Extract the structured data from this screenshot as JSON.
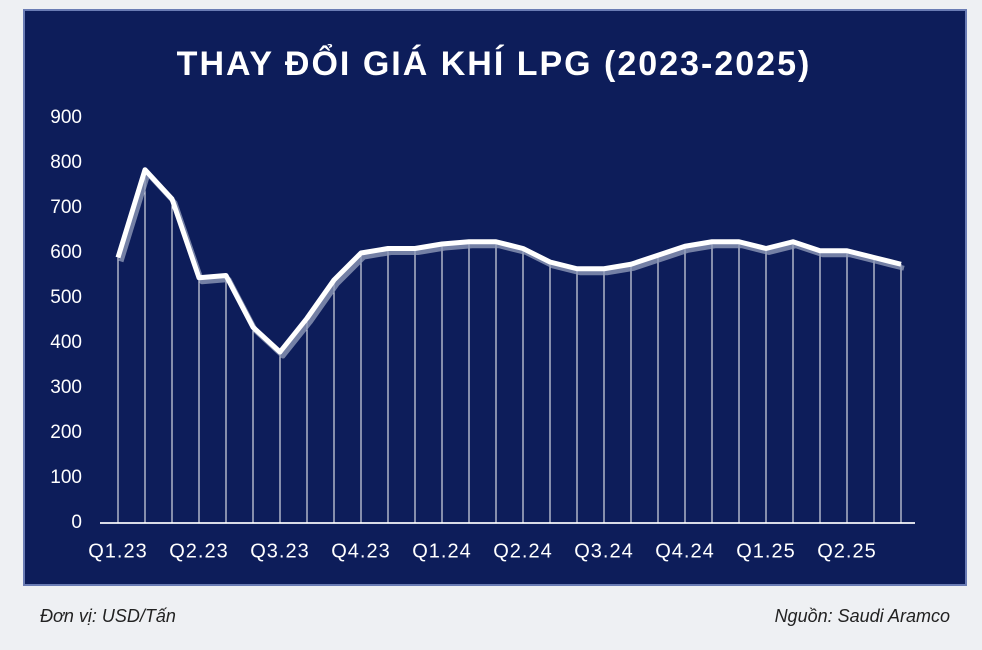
{
  "chart_data": {
    "type": "line",
    "title": "THAY ĐỔI GIÁ KHÍ LPG (2023-2025)",
    "categories": [
      "Q1.23",
      null,
      null,
      "Q2.23",
      null,
      null,
      "Q3.23",
      null,
      null,
      "Q4.23",
      null,
      null,
      "Q1.24",
      null,
      null,
      "Q2.24",
      null,
      null,
      "Q3.24",
      null,
      null,
      "Q4.24",
      null,
      null,
      "Q1.25",
      null,
      null,
      "Q2.25",
      null,
      null
    ],
    "values": [
      590,
      785,
      720,
      545,
      550,
      435,
      380,
      455,
      540,
      600,
      610,
      610,
      620,
      625,
      625,
      610,
      580,
      565,
      565,
      575,
      595,
      615,
      625,
      625,
      610,
      625,
      605,
      605,
      590,
      575
    ],
    "color": "#ffffff",
    "ylim": [
      0,
      900
    ],
    "yticks": [
      0,
      100,
      200,
      300,
      400,
      500,
      600,
      700,
      800,
      900
    ],
    "unit_note": "Đơn vị: USD/Tấn",
    "source": "Nguồn: Saudi Aramco"
  }
}
